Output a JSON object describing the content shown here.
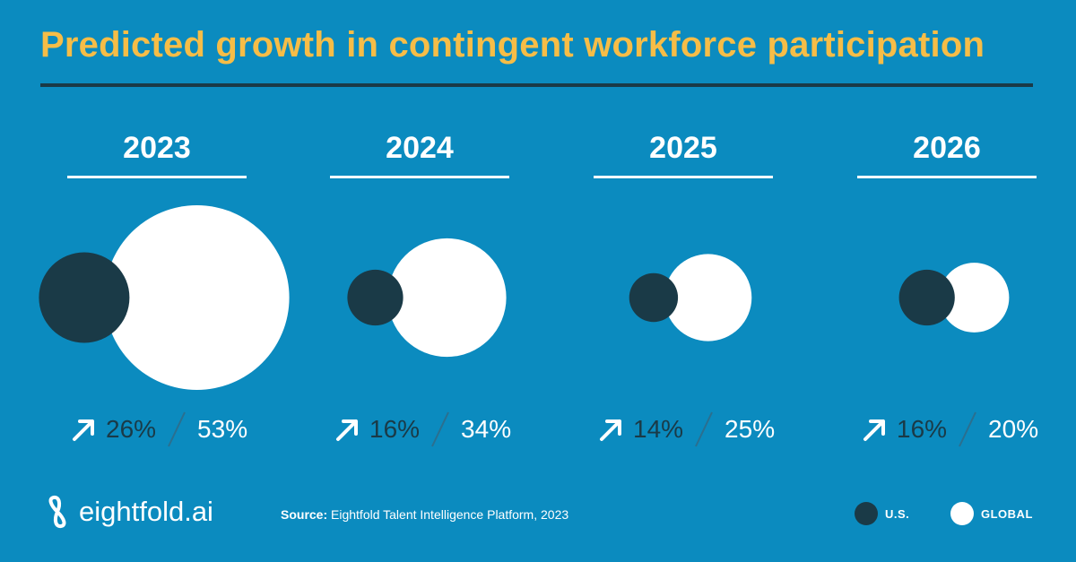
{
  "title": "Predicted growth in contingent workforce participation",
  "chart_data": {
    "type": "bubble",
    "title": "Predicted growth in contingent workforce participation",
    "categories": [
      "2023",
      "2024",
      "2025",
      "2026"
    ],
    "series": [
      {
        "name": "U.S.",
        "values": [
          26,
          16,
          14,
          16
        ],
        "labels": [
          "26%",
          "16%",
          "14%",
          "16%"
        ],
        "color": "#1a3a47"
      },
      {
        "name": "GLOBAL",
        "values": [
          53,
          34,
          25,
          20
        ],
        "labels": [
          "53%",
          "34%",
          "25%",
          "20%"
        ],
        "color": "#ffffff"
      }
    ]
  },
  "brand": {
    "name": "eightfold.ai",
    "icon": "infinity-logo-icon"
  },
  "source": {
    "label": "Source:",
    "text": "Eightfold Talent Intelligence Platform, 2023"
  },
  "legend": [
    {
      "label": "U.S.",
      "color": "#1a3a47"
    },
    {
      "label": "GLOBAL",
      "color": "#ffffff"
    }
  ],
  "icons": {
    "growth": "arrow-up-right-icon"
  },
  "colors": {
    "background": "#0b8bbf",
    "title": "#f6bd47",
    "us": "#1a3a47",
    "global": "#ffffff"
  }
}
